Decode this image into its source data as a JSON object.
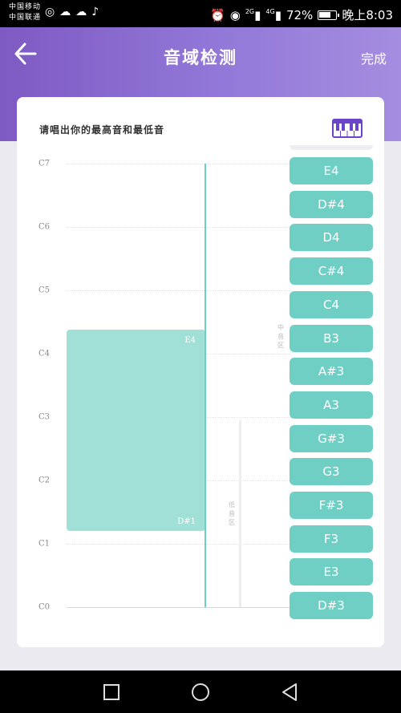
{
  "status_bar": {
    "carrier_1": "中国移动",
    "carrier_2": "中国联通",
    "app_icons": [
      "weibo-icon",
      "wechat-icon",
      "cloud-icon",
      "tiktok-icon"
    ],
    "net_1": "2G",
    "net_2": "4G",
    "battery_percent": "72%",
    "battery_level": 0.72,
    "time": "晚上8:03"
  },
  "header": {
    "title": "音域检测",
    "done_label": "完成",
    "gradient_start": "#7e5ac3",
    "gradient_end": "#a58de0"
  },
  "card": {
    "prompt": "请唱出你的最高音和最低音",
    "piano_icon_color": "#6b45c9"
  },
  "chart_data": {
    "type": "range",
    "y_labels": [
      "C7",
      "C6",
      "C5",
      "C4",
      "C3",
      "C2",
      "C1",
      "C0"
    ],
    "range": {
      "top_label": "E4",
      "bottom_label": "D#1"
    },
    "zone_labels": {
      "middle": "中音区",
      "low": "低音区"
    },
    "color": "#a1e0d7",
    "cursor_color": "#6ccfc4"
  },
  "notes": [
    "E4",
    "D#4",
    "D4",
    "C#4",
    "C4",
    "B3",
    "A#3",
    "A3",
    "G#3",
    "G3",
    "F#3",
    "F3",
    "E3",
    "D#3"
  ],
  "note_color": "#6fcfc4",
  "navbar": {
    "back": "back-triangle-icon",
    "home": "home-circle-icon",
    "recent": "recent-square-icon"
  }
}
